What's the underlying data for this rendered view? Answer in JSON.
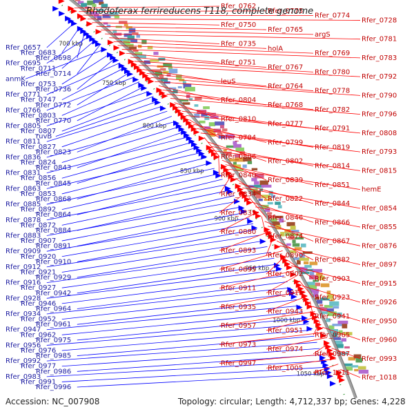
{
  "title": "Rhodoferax ferrireducens T118, complete genome",
  "footer": {
    "accession": "Accession: NC_007908",
    "summary": "Topology: circular; Length: 4,712,337 bp; Genes: 4,228"
  },
  "colors": {
    "forward": "#ff0000",
    "reverse": "#0000ff",
    "backbone": "#a0a0a0",
    "tick": "#228b22"
  },
  "ticks": [
    "700 kbp",
    "750 kbp",
    "800 kbp",
    "850 kbp",
    "900 kbp",
    "950 kbp",
    "1000 kbp",
    "1050 kbp"
  ],
  "left_labels": [
    "Rfer_0657",
    "Rfer_0683",
    "Rfer_0698",
    "Rfer_0695",
    "Rfer_0711",
    "Rfer_0714",
    "anmK",
    "Rfer_0753",
    "Rfer_0736",
    "Rfer_0771",
    "Rfer_0747",
    "Rfer_0772",
    "Rfer_0766",
    "Rfer_0803",
    "Rfer_0770",
    "Rfer_0805",
    "Rfer_0807",
    "ruvB",
    "Rfer_0811",
    "Rfer_0827",
    "Rfer_0823",
    "Rfer_0836",
    "Rfer_0824",
    "Rfer_0843",
    "Rfer_0831",
    "Rfer_0856",
    "Rfer_0845",
    "Rfer_0863",
    "Rfer_0853",
    "Rfer_0868",
    "Rfer_0885",
    "Rfer_0892",
    "Rfer_0864",
    "Rfer_0878",
    "Rfer_0872",
    "Rfer_0884",
    "Rfer_0883",
    "Rfer_0907",
    "Rfer_0891",
    "Rfer_0909",
    "Rfer_0920",
    "Rfer_0910",
    "Rfer_0912",
    "Rfer_0921",
    "Rfer_0929",
    "Rfer_0916",
    "Rfer_0927",
    "Rfer_0942",
    "Rfer_0928",
    "Rfer_0946",
    "Rfer_0964",
    "Rfer_0934",
    "Rfer_0952",
    "Rfer_0961",
    "Rfer_0947",
    "Rfer_0962",
    "Rfer_0975",
    "Rfer_0956",
    "Rfer_0976",
    "Rfer_0985",
    "Rfer_0992",
    "Rfer_0977",
    "Rfer_0986",
    "Rfer_0983",
    "Rfer_0991",
    "Rfer_0996"
  ],
  "right_labels": [
    "Rfer_0762",
    "Rfer_0775",
    "Rfer_0774",
    "Rfer_0728",
    "Rfer_0750",
    "Rfer_0765",
    "argS",
    "Rfer_0781",
    "Rfer_0735",
    "holA",
    "Rfer_0769",
    "Rfer_0783",
    "Rfer_0751",
    "Rfer_0767",
    "Rfer_0780",
    "Rfer_0792",
    "leuS",
    "Rfer_0764",
    "Rfer_0778",
    "Rfer_0790",
    "Rfer_0804",
    "Rfer_0768",
    "Rfer_0782",
    "Rfer_0796",
    "Rfer_0810",
    "Rfer_0777",
    "Rfer_0791",
    "Rfer_0808",
    "Rfer_0784",
    "Rfer_0799",
    "Rfer_0819",
    "Rfer_0793",
    "Rfer_0806",
    "Rfer_0802",
    "Rfer_0814",
    "Rfer_0815",
    "Rfer_0840",
    "Rfer_0839",
    "Rfer_0851",
    "hemE",
    "Rfer_0834",
    "Rfer_0822",
    "Rfer_0844",
    "Rfer_0854",
    "Rfer_0835",
    "Rfer_0846",
    "Rfer_0866",
    "Rfer_0855",
    "Rfer_0880",
    "Rfer_0874",
    "Rfer_0867",
    "Rfer_0876",
    "Rfer_0893",
    "Rfer_0890",
    "Rfer_0882",
    "Rfer_0897",
    "Rfer_0895",
    "Rfer_0902",
    "Rfer_0903",
    "Rfer_0915",
    "Rfer_0911",
    "Rfer_0919",
    "Rfer_0923",
    "Rfer_0926",
    "Rfer_0935",
    "Rfer_0943",
    "Rfer_0941",
    "Rfer_0950",
    "Rfer_0957",
    "Rfer_0951",
    "Rfer_0965",
    "Rfer_0960",
    "Rfer_0973",
    "Rfer_0974",
    "Rfer_0987",
    "Rfer_0993",
    "Rfer_0997",
    "Rfer_1005",
    "Rfer_1011",
    "Rfer_1018"
  ]
}
